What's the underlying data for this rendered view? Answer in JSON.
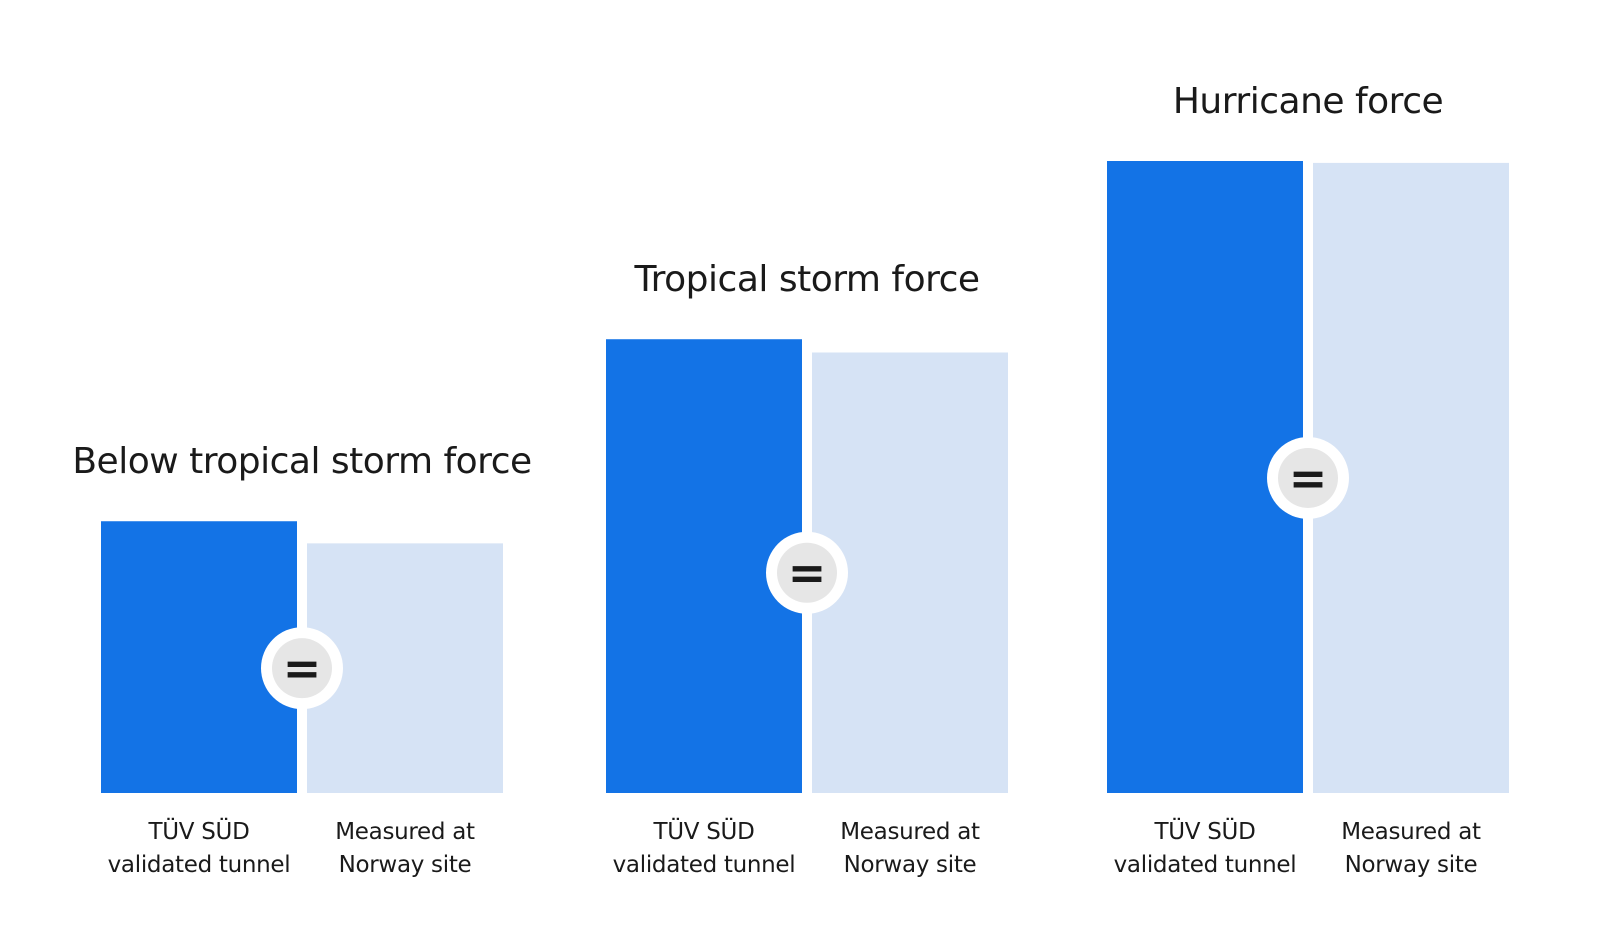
{
  "chart_data": {
    "type": "bar",
    "title": "",
    "xlabel": "",
    "ylabel": "",
    "ylim": [
      0,
      1
    ],
    "grid": false,
    "legend": "none",
    "colors": {
      "tunnel": "#1373e6",
      "site": "#d6e3f5",
      "badge_ring": "#ffffff",
      "badge_fill": "#e6e6e6",
      "text": "#1a1a1a"
    },
    "equality_symbol": "=",
    "groups": [
      {
        "title": "Below tropical storm force",
        "bars": [
          {
            "label_line1": "TÜV SÜD",
            "label_line2": "validated tunnel",
            "value": 0.43
          },
          {
            "label_line1": "Measured at",
            "label_line2": "Norway site",
            "value": 0.395
          }
        ]
      },
      {
        "title": "Tropical storm force",
        "bars": [
          {
            "label_line1": "TÜV SÜD",
            "label_line2": "validated tunnel",
            "value": 0.718
          },
          {
            "label_line1": "Measured at",
            "label_line2": "Norway site",
            "value": 0.697
          }
        ]
      },
      {
        "title": "Hurricane force",
        "bars": [
          {
            "label_line1": "TÜV SÜD",
            "label_line2": "validated tunnel",
            "value": 1.0
          },
          {
            "label_line1": "Measured at",
            "label_line2": "Norway site",
            "value": 0.997
          }
        ]
      }
    ]
  }
}
